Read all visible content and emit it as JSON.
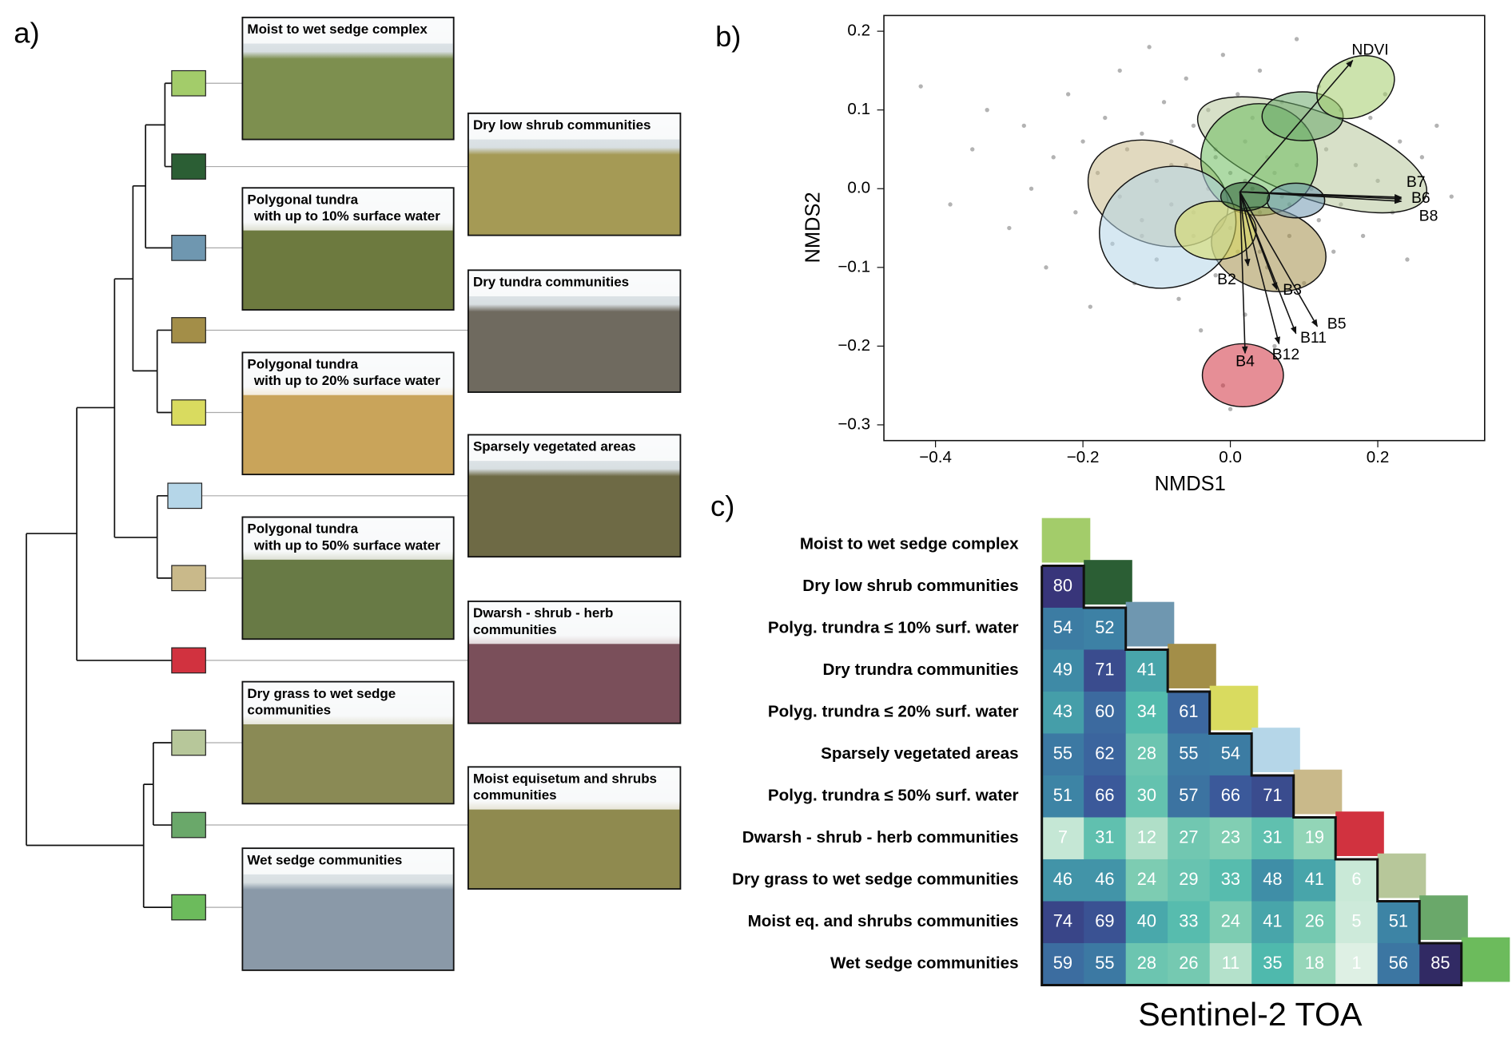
{
  "panel_a": {
    "label": "a)",
    "classes": [
      {
        "color": "#a3cc6a",
        "photo": [
          "Moist to wet sedge complex"
        ]
      },
      {
        "color": "#2b5e34",
        "photo": [
          "Dry low shrub communities"
        ]
      },
      {
        "color": "#6f97b0",
        "photo": [
          "Polygonal tundra",
          "with up to 10% surface water"
        ]
      },
      {
        "color": "#a38e48",
        "photo": [
          "Dry tundra communities"
        ]
      },
      {
        "color": "#d9db5f",
        "photo": [
          "Polygonal tundra",
          "with up to 20% surface water"
        ]
      },
      {
        "color": "#b5d6e8",
        "photo": [
          "Sparsely vegetated areas"
        ]
      },
      {
        "color": "#c9b98a",
        "photo": [
          "Polygonal tundra",
          "with up to 50% surface water"
        ]
      },
      {
        "color": "#d1323f",
        "photo": [
          "Dwarsh - shrub - herb",
          "communities"
        ]
      },
      {
        "color": "#b7c79a",
        "photo": [
          "Dry grass to wet sedge",
          "communities"
        ]
      },
      {
        "color": "#6aa86a",
        "photo": [
          "Moist equisetum and shrubs",
          "communities"
        ]
      },
      {
        "color": "#6cbb5c",
        "photo": [
          "Wet sedge communities"
        ]
      }
    ]
  },
  "chart_data": [
    {
      "type": "scatter",
      "panel_label": "b)",
      "x_label": "NMDS1",
      "y_label": "NMDS2",
      "xlim": [
        -0.47,
        0.345
      ],
      "ylim": [
        -0.32,
        0.22
      ],
      "xticks": [
        {
          "value": -0.4,
          "label": "−0.4"
        },
        {
          "value": -0.2,
          "label": "−0.2"
        },
        {
          "value": 0,
          "label": "0.0"
        },
        {
          "value": 0.2,
          "label": "0.2"
        }
      ],
      "yticks": [
        {
          "value": 0.2,
          "label": "0.2"
        },
        {
          "value": 0.1,
          "label": "0.1"
        },
        {
          "value": 0,
          "label": "0.0"
        },
        {
          "value": -0.1,
          "label": "−0.1"
        },
        {
          "value": -0.2,
          "label": "−0.2"
        },
        {
          "value": -0.3,
          "label": "−0.3"
        }
      ],
      "point_color": "#9a9a9a",
      "points": {
        "x": [
          -0.42,
          -0.38,
          -0.35,
          -0.33,
          -0.3,
          -0.28,
          -0.27,
          -0.25,
          -0.24,
          -0.22,
          -0.21,
          -0.2,
          -0.19,
          -0.18,
          -0.17,
          -0.16,
          -0.15,
          -0.15,
          -0.14,
          -0.13,
          -0.12,
          -0.12,
          -0.11,
          -0.1,
          -0.1,
          -0.09,
          -0.08,
          -0.08,
          -0.07,
          -0.06,
          -0.06,
          -0.05,
          -0.05,
          -0.04,
          -0.03,
          -0.03,
          -0.02,
          -0.02,
          -0.01,
          -0.01,
          0,
          0,
          0.01,
          0.01,
          0.02,
          0.02,
          0.03,
          0.03,
          0.04,
          0.04,
          0.05,
          0.05,
          0.06,
          0.06,
          0.07,
          0.07,
          0.08,
          0.09,
          0.09,
          0.1,
          0.1,
          0.11,
          0.12,
          0.12,
          0.13,
          0.14,
          0.15,
          0.15,
          0.16,
          0.17,
          0.18,
          0.19,
          0.2,
          0.21,
          0.22,
          0.23,
          0.24,
          0.26,
          0.28,
          0.3,
          -0.05,
          0.02,
          0.06,
          -0.12,
          0.08,
          -0.02,
          0.04,
          -0.08,
          0.11,
          0
        ],
        "y": [
          0.13,
          -0.02,
          0.05,
          0.1,
          -0.05,
          0.08,
          0,
          -0.1,
          0.04,
          0.12,
          -0.03,
          0.06,
          -0.15,
          0.02,
          0.09,
          -0.07,
          0.15,
          -0.01,
          0.05,
          -0.12,
          0.07,
          -0.04,
          0.18,
          0.01,
          -0.09,
          0.11,
          -0.02,
          0.06,
          -0.14,
          0.03,
          0.14,
          -0.06,
          0.08,
          -0.18,
          0,
          0.1,
          -0.11,
          0.04,
          0.17,
          -0.25,
          0.02,
          -0.05,
          0.12,
          -0.08,
          0.06,
          -0.16,
          0,
          0.09,
          -0.03,
          0.15,
          -0.1,
          0.04,
          -0.2,
          0.07,
          -0.01,
          0.11,
          -0.06,
          0.03,
          0.19,
          -0.12,
          0.08,
          0,
          -0.04,
          0.13,
          0.05,
          -0.08,
          0.1,
          -0.02,
          0.16,
          0.03,
          -0.06,
          0.09,
          0.01,
          0.12,
          -0.03,
          0.06,
          -0.09,
          0.04,
          0.08,
          -0.01,
          -0.03,
          0.01,
          0.02,
          -0.06,
          -0.02,
          0.05,
          -0.08,
          0.03,
          0,
          -0.28
        ]
      },
      "ellipses": [
        {
          "class": 8,
          "cx": 0.111,
          "cy": 0.043,
          "rx": 0.164,
          "ry": 0.055,
          "angle": 20
        },
        {
          "class": 6,
          "cx": -0.098,
          "cy": -0.006,
          "rx": 0.098,
          "ry": 0.064,
          "angle": 20
        },
        {
          "class": 10,
          "cx": 0.039,
          "cy": 0.037,
          "rx": 0.079,
          "ry": 0.071,
          "angle": 0
        },
        {
          "class": 3,
          "cx": 0.052,
          "cy": -0.077,
          "rx": 0.079,
          "ry": 0.052,
          "angle": 15
        },
        {
          "class": 5,
          "cx": -0.085,
          "cy": -0.049,
          "rx": 0.094,
          "ry": 0.076,
          "angle": -20
        },
        {
          "class": 4,
          "cx": -0.02,
          "cy": -0.053,
          "rx": 0.055,
          "ry": 0.037,
          "angle": 0
        },
        {
          "class": 9,
          "cx": 0.098,
          "cy": 0.092,
          "rx": 0.055,
          "ry": 0.031,
          "angle": 0
        },
        {
          "class": 0,
          "cx": 0.17,
          "cy": 0.129,
          "rx": 0.055,
          "ry": 0.037,
          "angle": -25
        },
        {
          "class": 2,
          "cx": 0.089,
          "cy": -0.015,
          "rx": 0.039,
          "ry": 0.022,
          "angle": 0
        },
        {
          "class": 1,
          "cx": 0.02,
          "cy": -0.01,
          "rx": 0.033,
          "ry": 0.018,
          "angle": 0
        },
        {
          "class": 7,
          "cx": 0.017,
          "cy": -0.237,
          "rx": 0.055,
          "ry": 0.04,
          "angle": 0
        }
      ],
      "vector_origin": [
        0.013,
        -0.004
      ],
      "vectors": [
        {
          "name": "NDVI",
          "x": 0.166,
          "y": 0.163
        },
        {
          "name": "B7",
          "x": 0.232,
          "y": -0.011
        },
        {
          "name": "B6",
          "x": 0.232,
          "y": -0.013
        },
        {
          "name": "B8",
          "x": 0.232,
          "y": -0.016
        },
        {
          "name": "B2",
          "x": 0.024,
          "y": -0.098
        },
        {
          "name": "B3",
          "x": 0.063,
          "y": -0.128
        },
        {
          "name": "B5",
          "x": 0.118,
          "y": -0.175
        },
        {
          "name": "B11",
          "x": 0.089,
          "y": -0.184
        },
        {
          "name": "B12",
          "x": 0.066,
          "y": -0.197
        },
        {
          "name": "B4",
          "x": 0.02,
          "y": -0.209
        }
      ]
    },
    {
      "type": "heatmap",
      "panel_label": "c)",
      "title": "Sentinel-2 TOA",
      "categories": [
        "Moist to wet sedge complex",
        "Dry low shrub communities",
        "Polyg. trundra ≤ 10% surf. water",
        "Dry trundra communities",
        "Polyg. trundra ≤ 20% surf. water",
        "Sparsely vegetated areas",
        "Polyg. trundra ≤ 50% surf. water",
        "Dwarsh - shrub - herb communities",
        "Dry grass to wet sedge communities",
        "Moist eq. and shrubs communities",
        "Wet sedge communities"
      ],
      "values": [
        [],
        [
          80
        ],
        [
          54,
          52
        ],
        [
          49,
          71,
          41
        ],
        [
          43,
          60,
          34,
          61
        ],
        [
          55,
          62,
          28,
          55,
          54
        ],
        [
          51,
          66,
          30,
          57,
          66,
          71
        ],
        [
          7,
          31,
          12,
          27,
          23,
          31,
          19
        ],
        [
          46,
          46,
          24,
          29,
          33,
          48,
          41,
          6
        ],
        [
          74,
          69,
          40,
          33,
          24,
          41,
          26,
          5,
          51
        ],
        [
          59,
          55,
          28,
          26,
          11,
          35,
          18,
          1,
          56,
          85
        ]
      ],
      "colorscale": [
        [
          0,
          "#e2f2e6"
        ],
        [
          20,
          "#8ed3b4"
        ],
        [
          35,
          "#4fb9ad"
        ],
        [
          50,
          "#3d87a6"
        ],
        [
          65,
          "#3b5c9c"
        ],
        [
          80,
          "#38357a"
        ],
        [
          90,
          "#2a1f4d"
        ]
      ]
    }
  ]
}
